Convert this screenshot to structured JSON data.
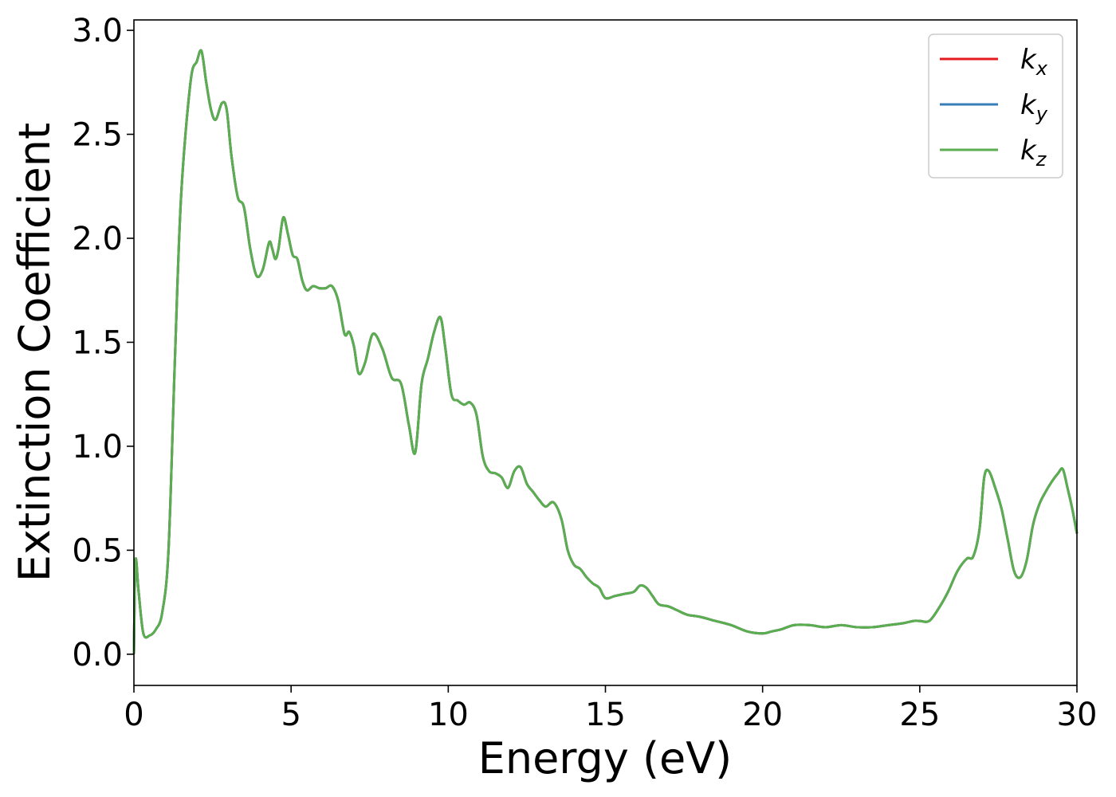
{
  "chart_data": {
    "type": "line",
    "xlabel": "Energy (eV)",
    "ylabel": "Extinction Coefficient",
    "xlim": [
      0,
      30
    ],
    "ylim": [
      -0.15,
      3.05
    ],
    "xticks": [
      0,
      5,
      10,
      15,
      20,
      25,
      30
    ],
    "xtick_labels": [
      "0",
      "5",
      "10",
      "15",
      "20",
      "25",
      "30"
    ],
    "yticks": [
      0.0,
      0.5,
      1.0,
      1.5,
      2.0,
      2.5,
      3.0
    ],
    "ytick_labels": [
      "0.0",
      "0.5",
      "1.0",
      "1.5",
      "2.0",
      "2.5",
      "3.0"
    ],
    "grid": false,
    "legend_position": "top-right",
    "x": [
      0,
      0.05,
      0.15,
      0.3,
      0.5,
      0.7,
      0.9,
      1.1,
      1.3,
      1.5,
      1.8,
      2.0,
      2.15,
      2.3,
      2.45,
      2.6,
      2.8,
      2.95,
      3.1,
      3.3,
      3.5,
      3.7,
      3.9,
      4.1,
      4.3,
      4.4,
      4.5,
      4.6,
      4.75,
      4.9,
      5.05,
      5.2,
      5.35,
      5.5,
      5.7,
      5.9,
      6.1,
      6.3,
      6.5,
      6.7,
      6.85,
      7.0,
      7.15,
      7.35,
      7.6,
      7.9,
      8.2,
      8.5,
      8.75,
      8.95,
      9.15,
      9.35,
      9.55,
      9.75,
      9.9,
      10.1,
      10.3,
      10.5,
      10.7,
      10.9,
      11.1,
      11.3,
      11.5,
      11.7,
      11.9,
      12.1,
      12.3,
      12.5,
      12.7,
      12.9,
      13.1,
      13.35,
      13.6,
      13.8,
      14.0,
      14.2,
      14.4,
      14.6,
      14.8,
      15.0,
      15.3,
      15.6,
      15.9,
      16.1,
      16.3,
      16.5,
      16.7,
      17.0,
      17.3,
      17.6,
      18.0,
      18.5,
      19.0,
      19.5,
      20.0,
      20.3,
      20.6,
      21.0,
      21.5,
      22.0,
      22.5,
      23.0,
      23.5,
      24.0,
      24.5,
      24.8,
      25.0,
      25.3,
      25.6,
      25.9,
      26.2,
      26.5,
      26.7,
      26.9,
      27.05,
      27.2,
      27.4,
      27.6,
      27.8,
      28.0,
      28.2,
      28.4,
      28.6,
      28.8,
      29.0,
      29.2,
      29.4,
      29.55,
      29.7,
      29.85,
      30.0
    ],
    "series": [
      {
        "name": "k_x",
        "color": "#e41a1c",
        "values": [
          0.0,
          0.45,
          0.3,
          0.1,
          0.09,
          0.12,
          0.2,
          0.5,
          1.4,
          2.2,
          2.75,
          2.85,
          2.9,
          2.75,
          2.62,
          2.57,
          2.65,
          2.62,
          2.4,
          2.2,
          2.15,
          1.95,
          1.82,
          1.85,
          1.98,
          1.95,
          1.9,
          1.95,
          2.1,
          2.02,
          1.92,
          1.9,
          1.8,
          1.75,
          1.77,
          1.76,
          1.76,
          1.77,
          1.7,
          1.54,
          1.55,
          1.48,
          1.35,
          1.4,
          1.54,
          1.47,
          1.33,
          1.3,
          1.1,
          0.97,
          1.3,
          1.42,
          1.55,
          1.62,
          1.48,
          1.25,
          1.22,
          1.2,
          1.21,
          1.15,
          0.95,
          0.88,
          0.87,
          0.85,
          0.8,
          0.88,
          0.9,
          0.82,
          0.78,
          0.74,
          0.71,
          0.73,
          0.65,
          0.5,
          0.43,
          0.41,
          0.37,
          0.34,
          0.32,
          0.27,
          0.28,
          0.29,
          0.3,
          0.33,
          0.32,
          0.28,
          0.24,
          0.23,
          0.21,
          0.19,
          0.18,
          0.16,
          0.14,
          0.11,
          0.1,
          0.11,
          0.12,
          0.14,
          0.14,
          0.13,
          0.14,
          0.13,
          0.13,
          0.14,
          0.15,
          0.16,
          0.16,
          0.16,
          0.22,
          0.3,
          0.4,
          0.46,
          0.47,
          0.6,
          0.85,
          0.88,
          0.8,
          0.7,
          0.55,
          0.4,
          0.37,
          0.45,
          0.62,
          0.72,
          0.78,
          0.83,
          0.87,
          0.89,
          0.8,
          0.7,
          0.58
        ]
      },
      {
        "name": "k_y",
        "color": "#377eb8",
        "values": [
          0.0,
          0.45,
          0.3,
          0.1,
          0.09,
          0.12,
          0.2,
          0.5,
          1.4,
          2.2,
          2.75,
          2.85,
          2.9,
          2.75,
          2.62,
          2.57,
          2.65,
          2.62,
          2.4,
          2.2,
          2.15,
          1.95,
          1.82,
          1.85,
          1.98,
          1.95,
          1.9,
          1.95,
          2.1,
          2.02,
          1.92,
          1.9,
          1.8,
          1.75,
          1.77,
          1.76,
          1.76,
          1.77,
          1.7,
          1.54,
          1.55,
          1.48,
          1.35,
          1.4,
          1.54,
          1.47,
          1.33,
          1.3,
          1.1,
          0.97,
          1.3,
          1.42,
          1.55,
          1.62,
          1.48,
          1.25,
          1.22,
          1.2,
          1.21,
          1.15,
          0.95,
          0.88,
          0.87,
          0.85,
          0.8,
          0.88,
          0.9,
          0.82,
          0.78,
          0.74,
          0.71,
          0.73,
          0.65,
          0.5,
          0.43,
          0.41,
          0.37,
          0.34,
          0.32,
          0.27,
          0.28,
          0.29,
          0.3,
          0.33,
          0.32,
          0.28,
          0.24,
          0.23,
          0.21,
          0.19,
          0.18,
          0.16,
          0.14,
          0.11,
          0.1,
          0.11,
          0.12,
          0.14,
          0.14,
          0.13,
          0.14,
          0.13,
          0.13,
          0.14,
          0.15,
          0.16,
          0.16,
          0.16,
          0.22,
          0.3,
          0.4,
          0.46,
          0.47,
          0.6,
          0.85,
          0.88,
          0.8,
          0.7,
          0.55,
          0.4,
          0.37,
          0.45,
          0.62,
          0.72,
          0.78,
          0.83,
          0.87,
          0.89,
          0.8,
          0.7,
          0.58
        ]
      },
      {
        "name": "k_z",
        "color": "#5aae4f",
        "values": [
          0.0,
          0.45,
          0.3,
          0.1,
          0.09,
          0.12,
          0.2,
          0.5,
          1.4,
          2.2,
          2.75,
          2.85,
          2.9,
          2.75,
          2.62,
          2.57,
          2.65,
          2.62,
          2.4,
          2.2,
          2.15,
          1.95,
          1.82,
          1.85,
          1.98,
          1.95,
          1.9,
          1.95,
          2.1,
          2.02,
          1.92,
          1.9,
          1.8,
          1.75,
          1.77,
          1.76,
          1.76,
          1.77,
          1.7,
          1.54,
          1.55,
          1.48,
          1.35,
          1.4,
          1.54,
          1.47,
          1.33,
          1.3,
          1.1,
          0.97,
          1.3,
          1.42,
          1.55,
          1.62,
          1.48,
          1.25,
          1.22,
          1.2,
          1.21,
          1.15,
          0.95,
          0.88,
          0.87,
          0.85,
          0.8,
          0.88,
          0.9,
          0.82,
          0.78,
          0.74,
          0.71,
          0.73,
          0.65,
          0.5,
          0.43,
          0.41,
          0.37,
          0.34,
          0.32,
          0.27,
          0.28,
          0.29,
          0.3,
          0.33,
          0.32,
          0.28,
          0.24,
          0.23,
          0.21,
          0.19,
          0.18,
          0.16,
          0.14,
          0.11,
          0.1,
          0.11,
          0.12,
          0.14,
          0.14,
          0.13,
          0.14,
          0.13,
          0.13,
          0.14,
          0.15,
          0.16,
          0.16,
          0.16,
          0.22,
          0.3,
          0.4,
          0.46,
          0.47,
          0.6,
          0.85,
          0.88,
          0.8,
          0.7,
          0.55,
          0.4,
          0.37,
          0.45,
          0.62,
          0.72,
          0.78,
          0.83,
          0.87,
          0.89,
          0.8,
          0.7,
          0.58
        ]
      }
    ],
    "legend": [
      {
        "base": "k",
        "sub": "x",
        "color": "#e41a1c"
      },
      {
        "base": "k",
        "sub": "y",
        "color": "#377eb8"
      },
      {
        "base": "k",
        "sub": "z",
        "color": "#5aae4f"
      }
    ]
  }
}
